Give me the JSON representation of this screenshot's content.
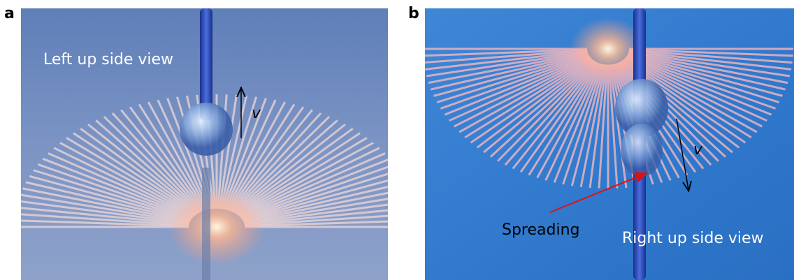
{
  "panels": [
    {
      "label": "a",
      "caption": "Left up side view",
      "velocity": "v"
    },
    {
      "label": "b",
      "caption": "Right up side view",
      "velocity": "v",
      "annotation": "Spreading"
    }
  ]
}
